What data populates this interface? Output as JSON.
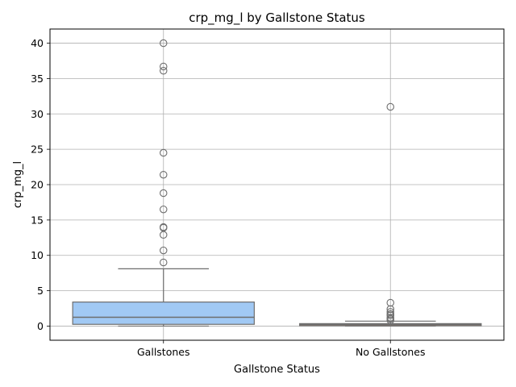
{
  "chart_data": {
    "type": "box",
    "title": "crp_mg_l by Gallstone Status",
    "xlabel": "Gallstone Status",
    "ylabel": "crp_mg_l",
    "ylim": [
      -2,
      42
    ],
    "yticks": [
      0,
      5,
      10,
      15,
      20,
      25,
      30,
      35,
      40
    ],
    "grid": true,
    "categories": [
      "Gallstones",
      "No Gallstones"
    ],
    "boxes": [
      {
        "category": "Gallstones",
        "color": "#a1c9f4",
        "whisker_low": 0.0,
        "q1": 0.25,
        "median": 1.25,
        "q3": 3.4,
        "whisker_high": 8.1,
        "outliers": [
          9.0,
          10.7,
          12.9,
          13.9,
          14.0,
          16.5,
          18.8,
          21.4,
          24.5,
          36.1,
          36.7,
          40.0
        ]
      },
      {
        "category": "No Gallstones",
        "color": "#ffb482",
        "whisker_low": 0.0,
        "q1": 0.05,
        "median": 0.2,
        "q3": 0.35,
        "whisker_high": 0.7,
        "outliers": [
          0.8,
          1.0,
          1.2,
          1.5,
          1.7,
          2.0,
          2.4,
          3.3,
          31.0
        ]
      }
    ]
  }
}
